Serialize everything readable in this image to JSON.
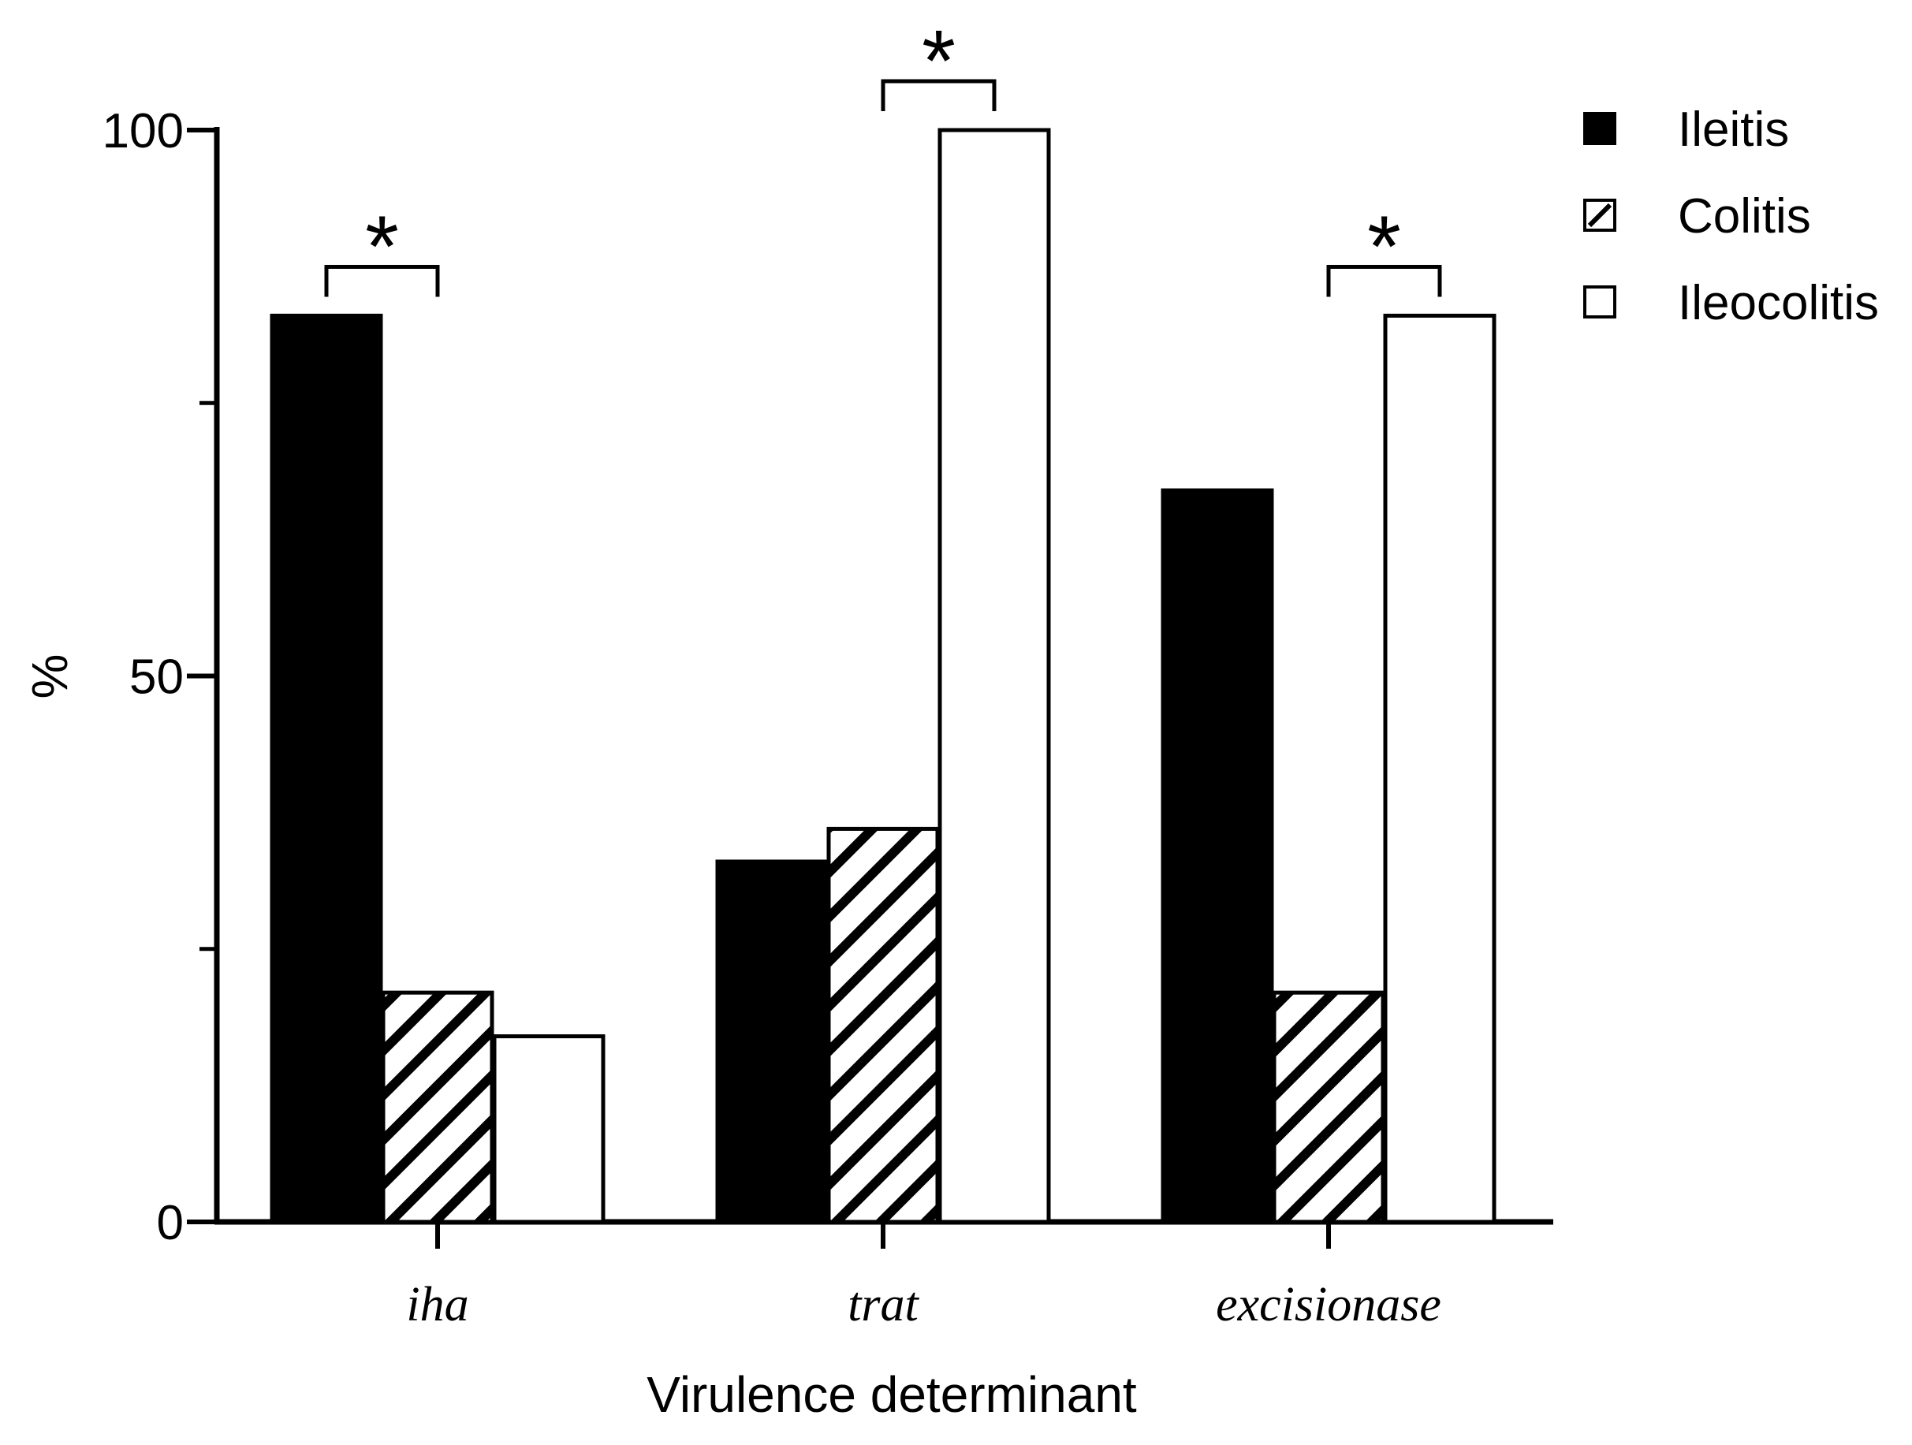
{
  "chart_data": {
    "type": "bar",
    "title": "",
    "xlabel": "Virulence determinant",
    "ylabel": "%",
    "ylim": [
      0,
      100
    ],
    "yticks": [
      0,
      50,
      100
    ],
    "yticks_minor": [
      25,
      75
    ],
    "categories": [
      "iha",
      "trat",
      "excisionase"
    ],
    "series": [
      {
        "name": "Ileitis",
        "fill": "solid",
        "values": [
          83,
          33,
          67
        ]
      },
      {
        "name": "Colitis",
        "fill": "hatched",
        "values": [
          21,
          36,
          21
        ]
      },
      {
        "name": "Ileocolitis",
        "fill": "open",
        "values": [
          17,
          100,
          83
        ]
      }
    ],
    "significance": [
      {
        "category": "iha",
        "between": [
          "Ileitis",
          "Colitis"
        ],
        "label": "*"
      },
      {
        "category": "trat",
        "between": [
          "Colitis",
          "Ileocolitis"
        ],
        "label": "*"
      },
      {
        "category": "excisionase",
        "between": [
          "Colitis",
          "Ileocolitis"
        ],
        "label": "*"
      }
    ],
    "legend": {
      "position": "top-right",
      "entries": [
        "Ileitis",
        "Colitis",
        "Ileocolitis"
      ]
    }
  },
  "colors": {
    "ink": "#000000",
    "background": "#ffffff"
  }
}
